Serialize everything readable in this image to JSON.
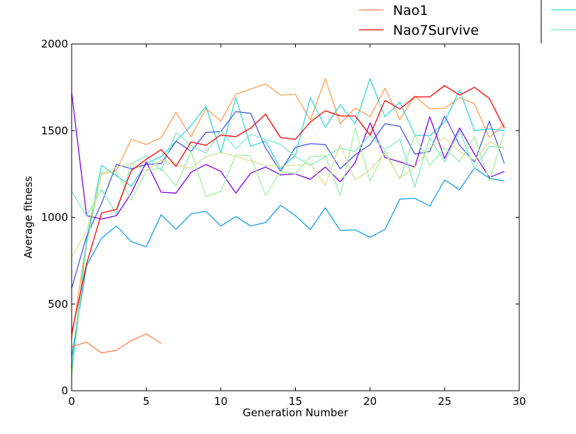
{
  "chart_data": {
    "type": "line",
    "title": "",
    "xlabel": "Generation Number",
    "ylabel": "Average fitness",
    "xlim": [
      0,
      30
    ],
    "ylim": [
      0,
      2000
    ],
    "xticks": [
      0,
      5,
      10,
      15,
      20,
      25,
      30
    ],
    "yticks": [
      0,
      500,
      1000,
      1500,
      2000
    ],
    "grid": false,
    "legend_position": "top (partially cut off above the plot)",
    "series": [
      {
        "name": "Nao1",
        "color": "#ff7f50",
        "x": [
          0,
          1,
          2,
          3,
          4,
          5,
          6
        ],
        "y": [
          255,
          280,
          218,
          233,
          290,
          328,
          272
        ]
      },
      {
        "name": "Nao7Survive",
        "color": "#ff0000",
        "x": [
          0,
          1,
          2,
          3,
          4,
          5,
          6,
          7,
          8,
          9,
          10,
          11,
          12,
          13,
          14,
          15,
          16,
          17,
          18,
          19,
          20,
          21,
          22,
          23,
          24,
          25,
          26,
          27,
          28,
          29
        ],
        "y": [
          330,
          730,
          1025,
          1045,
          1270,
          1335,
          1390,
          1295,
          1435,
          1415,
          1475,
          1465,
          1515,
          1595,
          1460,
          1450,
          1550,
          1615,
          1585,
          1585,
          1475,
          1675,
          1625,
          1695,
          1695,
          1760,
          1705,
          1750,
          1685,
          1515
        ]
      },
      {
        "color": "#ffa050",
        "x": [
          0,
          1,
          2,
          3,
          4,
          5,
          6,
          7,
          8,
          9,
          10,
          11,
          12,
          13,
          14,
          15,
          16,
          17,
          18,
          19,
          20,
          21,
          22,
          23,
          24,
          25,
          26,
          27,
          28,
          29
        ],
        "y": [
          300,
          860,
          1250,
          1270,
          1450,
          1420,
          1460,
          1605,
          1465,
          1630,
          1555,
          1710,
          1740,
          1770,
          1705,
          1710,
          1560,
          1800,
          1540,
          1630,
          1580,
          1745,
          1565,
          1700,
          1625,
          1630,
          1690,
          1655,
          1460,
          1540
        ]
      },
      {
        "color": "#30d8d8",
        "x": [
          0,
          1,
          2,
          3,
          4,
          5,
          6,
          7,
          8,
          9,
          10,
          11,
          12,
          13,
          14,
          15,
          16,
          17,
          18,
          19,
          20,
          21,
          22,
          23,
          24,
          25,
          26,
          27,
          28,
          29
        ],
        "y": [
          120,
          870,
          1300,
          1240,
          1180,
          1310,
          1350,
          1440,
          1530,
          1640,
          1370,
          1690,
          1410,
          1440,
          1280,
          1360,
          1690,
          1520,
          1650,
          1540,
          1800,
          1580,
          1665,
          1475,
          1470,
          1550,
          1735,
          1500,
          1510,
          1500
        ]
      },
      {
        "color": "#14a0e6",
        "x": [
          0,
          1,
          2,
          3,
          4,
          5,
          6,
          7,
          8,
          9,
          10,
          11,
          12,
          13,
          14,
          15,
          16,
          17,
          18,
          19,
          20,
          21,
          22,
          23,
          24,
          25,
          26,
          27,
          28,
          29
        ],
        "y": [
          190,
          720,
          880,
          950,
          860,
          830,
          1015,
          930,
          1020,
          1035,
          950,
          1005,
          950,
          970,
          1070,
          1010,
          930,
          1055,
          925,
          928,
          885,
          930,
          1105,
          1110,
          1065,
          1215,
          1160,
          1285,
          1225,
          1210
        ]
      },
      {
        "color": "#4858e0",
        "x": [
          0,
          1,
          2,
          3,
          4,
          5,
          6,
          7,
          8,
          9,
          10,
          11,
          12,
          13,
          14,
          15,
          16,
          17,
          18,
          19,
          20,
          21,
          22,
          23,
          24,
          25,
          26,
          27,
          28,
          29
        ],
        "y": [
          590,
          890,
          1080,
          1305,
          1280,
          1305,
          1310,
          1440,
          1380,
          1490,
          1495,
          1610,
          1600,
          1400,
          1265,
          1405,
          1425,
          1420,
          1280,
          1360,
          1420,
          1540,
          1525,
          1365,
          1380,
          1585,
          1415,
          1320,
          1555,
          1310
        ]
      },
      {
        "color": "#8000e8",
        "x": [
          0,
          1,
          2,
          3,
          4,
          5,
          6,
          7,
          8,
          9,
          10,
          11,
          12,
          13,
          14,
          15,
          16,
          17,
          18,
          19,
          20,
          21,
          22,
          23,
          24,
          25,
          26,
          27,
          28,
          29
        ],
        "y": [
          1720,
          1010,
          990,
          1010,
          1140,
          1320,
          1145,
          1140,
          1260,
          1305,
          1265,
          1140,
          1255,
          1290,
          1245,
          1250,
          1220,
          1290,
          1205,
          1315,
          1545,
          1345,
          1320,
          1290,
          1580,
          1340,
          1515,
          1365,
          1230,
          1265
        ]
      },
      {
        "color": "#7ce9c6",
        "x": [
          0,
          1,
          2,
          3,
          4,
          5,
          6,
          7,
          8,
          9,
          10,
          11,
          12,
          13,
          14,
          15,
          16,
          17,
          18,
          19,
          20,
          21,
          22,
          23,
          24,
          25,
          26,
          27,
          28,
          29
        ],
        "y": [
          1150,
          1010,
          1160,
          1020,
          1310,
          1355,
          1270,
          1490,
          1415,
          1370,
          1500,
          1395,
          1480,
          1450,
          1420,
          1350,
          1300,
          1350,
          1400,
          1380,
          1475,
          1390,
          1450,
          1175,
          1460,
          1320,
          1500,
          1280,
          1410,
          1400
        ]
      },
      {
        "color": "#a0f0a0",
        "x": [
          0,
          1,
          2,
          3,
          4,
          5,
          6,
          7,
          8,
          9,
          10,
          11,
          12,
          13,
          14,
          15,
          16,
          17,
          18,
          19,
          20,
          21,
          22,
          23,
          24,
          25,
          26,
          27,
          28,
          29
        ],
        "y": [
          80,
          840,
          1260,
          1260,
          1100,
          1270,
          1285,
          1180,
          1380,
          1120,
          1150,
          1360,
          1355,
          1125,
          1265,
          1250,
          1350,
          1355,
          1125,
          1515,
          1210,
          1385,
          1220,
          1475,
          1300,
          1400,
          1320,
          1465,
          1210,
          1495
        ]
      },
      {
        "color": "#d8e090",
        "x": [
          0,
          1,
          2,
          3,
          4,
          5,
          6,
          7,
          8,
          9,
          10,
          11,
          12,
          13,
          14,
          15,
          16,
          17,
          18,
          19,
          20,
          21,
          22,
          23,
          24,
          25,
          26,
          27,
          28,
          29
        ],
        "y": [
          770,
          920,
          1245,
          1290,
          1310,
          1270,
          1330,
          1300,
          1285,
          1350,
          1375,
          1350,
          1325,
          1300,
          1295,
          1300,
          1310,
          1185,
          1420,
          1215,
          1275,
          1370,
          1225,
          1290,
          1400,
          1460,
          1380,
          1330,
          1435,
          1395
        ]
      }
    ],
    "extra_legend_handles": [
      {
        "color": "#30d8d8"
      },
      {
        "color": "#7ce9c6"
      }
    ]
  }
}
